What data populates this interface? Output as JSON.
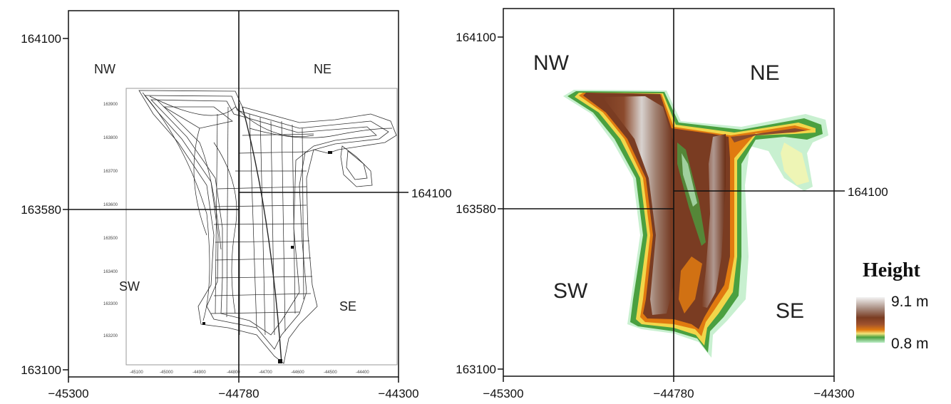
{
  "left_panel": {
    "y_ticks": [
      "164100",
      "163580",
      "163100"
    ],
    "x_ticks": [
      "−45300",
      "−44780",
      "−44300"
    ],
    "cross_label": "164100",
    "quadrants": {
      "nw": "NW",
      "ne": "NE",
      "sw": "SW",
      "se": "SE"
    },
    "inner_map": {
      "y_ticks": [
        "163900",
        "163800",
        "163700",
        "163600",
        "163500",
        "163400",
        "163300",
        "163200"
      ],
      "x_ticks": [
        "-45100",
        "-45000",
        "-44900",
        "-44800",
        "-44700",
        "-44600",
        "-44500",
        "-44400"
      ]
    }
  },
  "right_panel": {
    "y_ticks": [
      "164100",
      "163580",
      "163100"
    ],
    "x_ticks": [
      "−45300",
      "−44780",
      "−44300"
    ],
    "cross_label": "164100",
    "quadrants": {
      "nw": "NW",
      "ne": "NE",
      "sw": "SW",
      "se": "SE"
    }
  },
  "legend": {
    "title": "Height",
    "max_label": "9.1 m",
    "min_label": "0.8 m",
    "colors": [
      "#f4f4f4",
      "#a88c80",
      "#7a3c22",
      "#a0522d",
      "#e07a10",
      "#f2e47a",
      "#4aa040",
      "#bfeec9"
    ]
  }
}
